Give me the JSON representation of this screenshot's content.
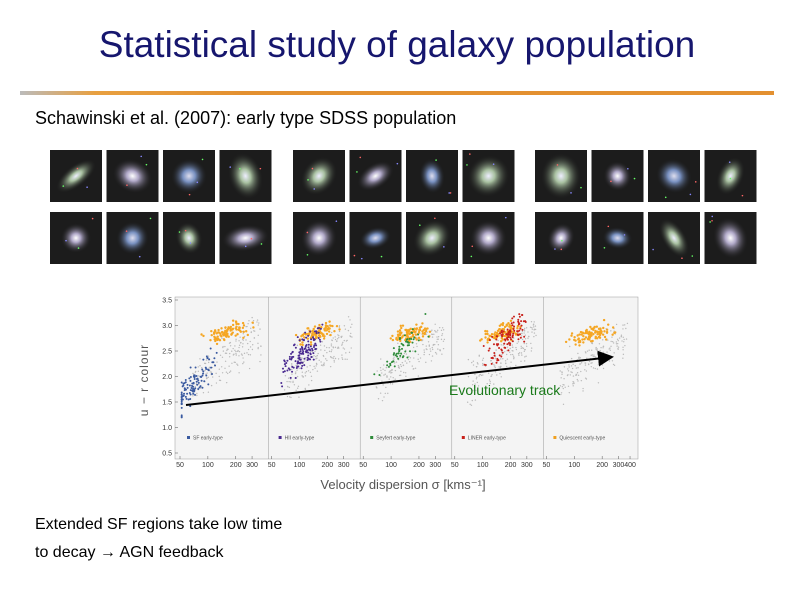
{
  "title": "Statistical study of galaxy population",
  "subtitle": "Schawinski et al.  (2007): early type SDSS population",
  "figure": {
    "y_label": "u − r colour",
    "x_label": "Velocity dispersion σ [kms⁻¹]",
    "yticks": [
      "3.5",
      "3.0",
      "2.5",
      "2.0",
      "1.5",
      "1.0",
      "0.5"
    ],
    "panels": [
      {
        "legend": "SF early-type",
        "xticks": [
          "50",
          "100",
          "200",
          "300"
        ]
      },
      {
        "legend": "HII early-type",
        "xticks": [
          "50",
          "100",
          "200",
          "300"
        ]
      },
      {
        "legend": "Seyfert early-type",
        "xticks": [
          "50",
          "100",
          "200",
          "300"
        ]
      },
      {
        "legend": "LINER early-type",
        "xticks": [
          "50",
          "100",
          "200",
          "300"
        ]
      },
      {
        "legend": "Quiescent early-type",
        "xticks": [
          "50",
          "100",
          "200",
          "300",
          "400"
        ]
      }
    ],
    "track_label": "Evolutionary track"
  },
  "notes": [
    "Extended SF regions take low time",
    "to decay → AGN feedback"
  ]
}
